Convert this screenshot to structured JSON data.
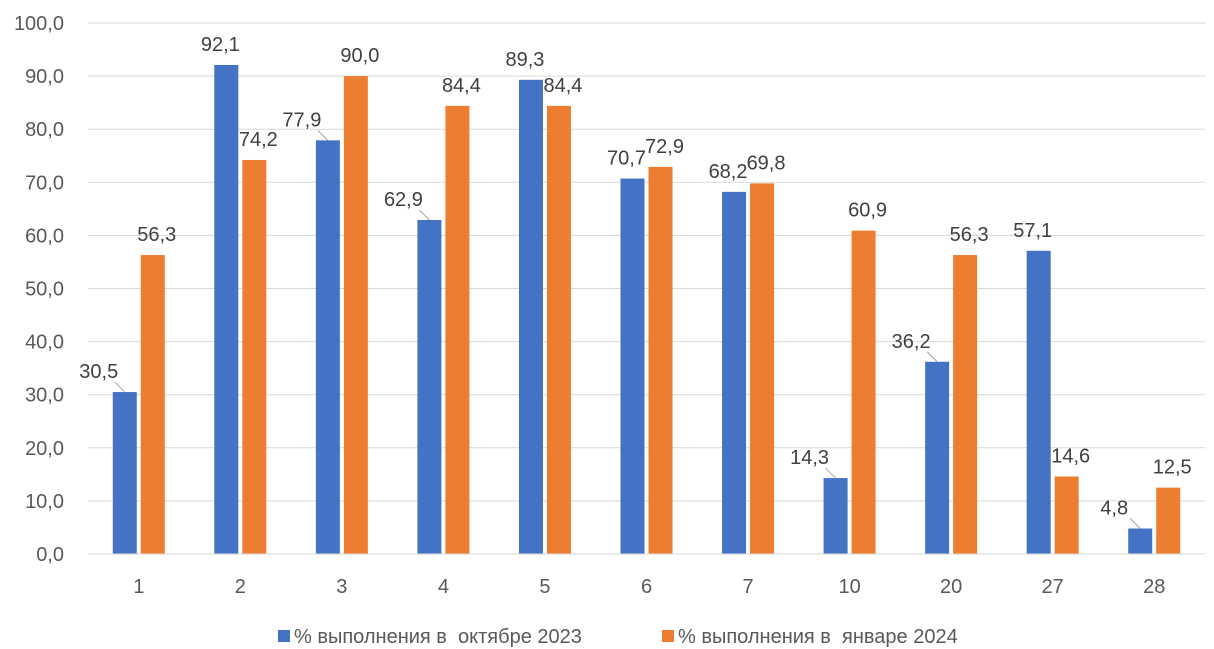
{
  "chart_data": {
    "type": "bar",
    "categories": [
      "1",
      "2",
      "3",
      "4",
      "5",
      "6",
      "7",
      "10",
      "20",
      "27",
      "28"
    ],
    "series": [
      {
        "name": "% выполнения в  октябре 2023",
        "color": "#4472C4",
        "values": [
          30.5,
          92.1,
          77.9,
          62.9,
          89.3,
          70.7,
          68.2,
          14.3,
          36.2,
          57.1,
          4.8
        ],
        "labels": [
          "30,5",
          "92,1",
          "77,9",
          "62,9",
          "89,3",
          "70,7",
          "68,2",
          "14,3",
          "36,2",
          "57,1",
          "4,8"
        ]
      },
      {
        "name": "% выполнения в  январе 2024",
        "color": "#ED7D31",
        "values": [
          56.3,
          74.2,
          90.0,
          84.4,
          84.4,
          72.9,
          69.8,
          60.9,
          56.3,
          14.6,
          12.5
        ],
        "labels": [
          "56,3",
          "74,2",
          "90,0",
          "84,4",
          "84,4",
          "72,9",
          "69,8",
          "60,9",
          "56,3",
          "14,6",
          "12,5"
        ]
      }
    ],
    "ylim": [
      0,
      100
    ],
    "yticks": [
      "0,0",
      "10,0",
      "20,0",
      "30,0",
      "40,0",
      "50,0",
      "60,0",
      "70,0",
      "80,0",
      "90,0",
      "100,0"
    ],
    "grid": true,
    "legend_position": "bottom",
    "gridline_color": "#D9D9D9"
  }
}
